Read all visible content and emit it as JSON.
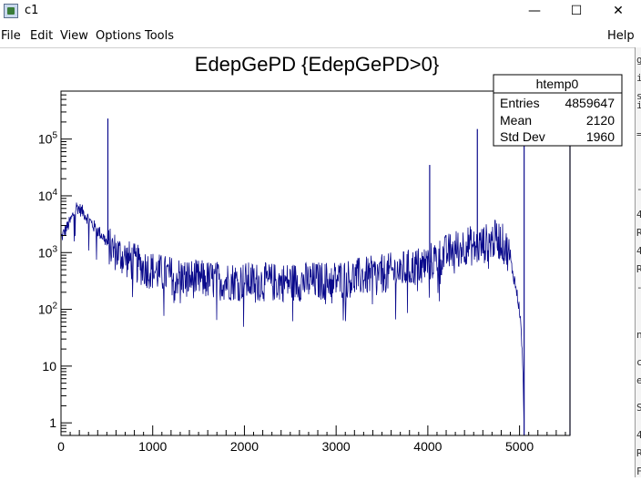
{
  "window": {
    "title": "c1",
    "minimize_glyph": "—",
    "maximize_glyph": "☐",
    "close_glyph": "✕"
  },
  "menu": {
    "file": "File",
    "edit": "Edit",
    "view": "View",
    "options": "Options",
    "tools": "Tools",
    "help": "Help"
  },
  "stats_box": {
    "title": "htemp0",
    "rows": [
      {
        "label": "Entries",
        "value": "4859647"
      },
      {
        "label": "Mean",
        "value": "2120"
      },
      {
        "label": "Std Dev",
        "value": "1960"
      }
    ]
  },
  "chart_data": {
    "type": "histogram",
    "title": "EdepGePD {EdepGePD>0}",
    "xlabel": "",
    "ylabel": "",
    "xlim": [
      0,
      5550
    ],
    "ylim": [
      0.6,
      700000
    ],
    "y_scale": "log",
    "line_color": "#0a0a8c",
    "x_ticks": [
      0,
      1000,
      2000,
      3000,
      4000,
      5000
    ],
    "x_tick_labels": [
      "0",
      "1000",
      "2000",
      "3000",
      "4000",
      "5000"
    ],
    "y_ticks": [
      1,
      10,
      100,
      1000,
      10000,
      100000
    ],
    "y_tick_labels": [
      "1",
      "10",
      "10^2",
      "10^3",
      "10^4",
      "10^5"
    ],
    "envelope": [
      [
        0,
        1800
      ],
      [
        100,
        3500
      ],
      [
        170,
        6500
      ],
      [
        250,
        5000
      ],
      [
        350,
        3000
      ],
      [
        450,
        2000
      ],
      [
        540,
        1200
      ],
      [
        700,
        800
      ],
      [
        900,
        550
      ],
      [
        1100,
        420
      ],
      [
        1400,
        350
      ],
      [
        1700,
        320
      ],
      [
        2000,
        310
      ],
      [
        2300,
        300
      ],
      [
        2600,
        305
      ],
      [
        2900,
        320
      ],
      [
        3200,
        360
      ],
      [
        3500,
        420
      ],
      [
        3800,
        520
      ],
      [
        4000,
        650
      ],
      [
        4200,
        950
      ],
      [
        4350,
        1250
      ],
      [
        4450,
        1400
      ],
      [
        4500,
        1200
      ],
      [
        4560,
        1300
      ],
      [
        4650,
        1500
      ],
      [
        4750,
        1750
      ],
      [
        4800,
        1600
      ],
      [
        4880,
        1000
      ],
      [
        4950,
        300
      ],
      [
        5000,
        100
      ],
      [
        5030,
        20
      ],
      [
        5045,
        2
      ],
      [
        5050,
        0.6
      ]
    ],
    "peaks": [
      {
        "x": 511,
        "y": 230000
      },
      {
        "x": 4020,
        "y": 35000
      },
      {
        "x": 4540,
        "y": 150000
      },
      {
        "x": 5050,
        "y": 700000
      },
      {
        "x": 5550,
        "y": 700000
      }
    ],
    "grid": false,
    "legend": "top-right stats box"
  }
}
